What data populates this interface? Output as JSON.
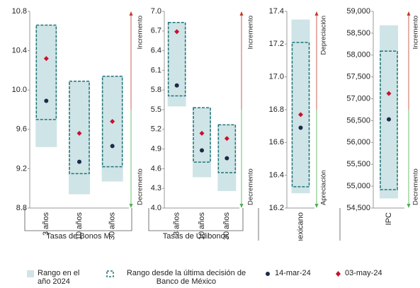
{
  "legend": [
    {
      "name": "Rango en el año 2024",
      "color": "#cfe4e6"
    },
    {
      "name": "Rango desde la última decisión de Banco de México",
      "color": "#1f7479"
    },
    {
      "name": "14-mar-24",
      "color": "#1c2a4a"
    },
    {
      "name": "03-may-24",
      "color": "#c8102e"
    }
  ],
  "chart_data": [
    {
      "type": "range",
      "group": "Tasas de Bonos M",
      "categories": [
        "3 años",
        "10 años",
        "30 años"
      ],
      "ylim": [
        8.8,
        10.8
      ],
      "yticks": [
        8.8,
        9.2,
        9.6,
        {
          "value": 10,
          "label": "10.0"
        },
        10.4,
        10.8
      ],
      "annotations": {
        "up": "Incremento",
        "down": "Decremento"
      },
      "series": [
        {
          "values": [
            [
              9.42,
              10.66
            ],
            [
              8.94,
              10.09
            ],
            [
              9.07,
              10.14
            ]
          ]
        },
        {
          "values": [
            [
              9.7,
              10.66
            ],
            [
              9.15,
              10.09
            ],
            [
              9.22,
              10.14
            ]
          ]
        },
        {
          "values": [
            9.89,
            9.27,
            9.43
          ]
        },
        {
          "values": [
            10.32,
            9.56,
            9.68
          ]
        }
      ]
    },
    {
      "type": "range",
      "group": "Tasas de Udibonos",
      "categories": [
        "3 años",
        "10 años",
        "30 años"
      ],
      "ylim": [
        4.0,
        7.0
      ],
      "yticks": [
        {
          "value": 4,
          "label": "4.0"
        },
        4.3,
        4.6,
        4.9,
        5.2,
        5.5,
        5.8,
        6.1,
        6.4,
        6.7,
        {
          "value": 7,
          "label": "7.0"
        }
      ],
      "annotations": {
        "up": "Incremento",
        "down": "Decremento"
      },
      "series": [
        {
          "values": [
            [
              5.55,
              6.83
            ],
            [
              4.47,
              5.53
            ],
            [
              4.26,
              5.27
            ]
          ]
        },
        {
          "values": [
            [
              5.71,
              6.83
            ],
            [
              4.7,
              5.53
            ],
            [
              4.54,
              5.27
            ]
          ]
        },
        {
          "values": [
            5.87,
            4.88,
            4.76
          ]
        },
        {
          "values": [
            6.69,
            5.14,
            5.06
          ]
        }
      ]
    },
    {
      "type": "range",
      "categories": [
        "Peso mexicano"
      ],
      "ylim": [
        16.2,
        17.4
      ],
      "yticks": [
        16.2,
        16.4,
        16.6,
        16.8,
        {
          "value": 17,
          "label": "17.0"
        },
        17.2,
        17.4
      ],
      "annotations": {
        "up": "Depreciación",
        "down": "Apreciación"
      },
      "series": [
        {
          "values": [
            [
              16.29,
              17.35
            ]
          ]
        },
        {
          "values": [
            [
              16.33,
              17.21
            ]
          ]
        },
        {
          "values": [
            16.69
          ]
        },
        {
          "values": [
            16.77
          ]
        }
      ]
    },
    {
      "type": "range",
      "categories": [
        "IPC"
      ],
      "ylim": [
        54500,
        59000
      ],
      "yticks": [
        {
          "value": 54500,
          "label": "54,500"
        },
        {
          "value": 55000,
          "label": "55,000"
        },
        {
          "value": 55500,
          "label": "55,500"
        },
        {
          "value": 56000,
          "label": "56,000"
        },
        {
          "value": 56500,
          "label": "56,500"
        },
        {
          "value": 57000,
          "label": "57,000"
        },
        {
          "value": 57500,
          "label": "57,500"
        },
        {
          "value": 58000,
          "label": "58,000"
        },
        {
          "value": 58500,
          "label": "58,500"
        },
        {
          "value": 59000,
          "label": "59,000"
        }
      ],
      "annotations": {
        "up": "Incremento",
        "down": "Decremento"
      },
      "series": [
        {
          "values": [
            [
              54720,
              58680
            ]
          ]
        },
        {
          "values": [
            [
              54920,
              58090
            ]
          ]
        },
        {
          "values": [
            56530
          ]
        },
        {
          "values": [
            57120
          ]
        }
      ]
    }
  ]
}
